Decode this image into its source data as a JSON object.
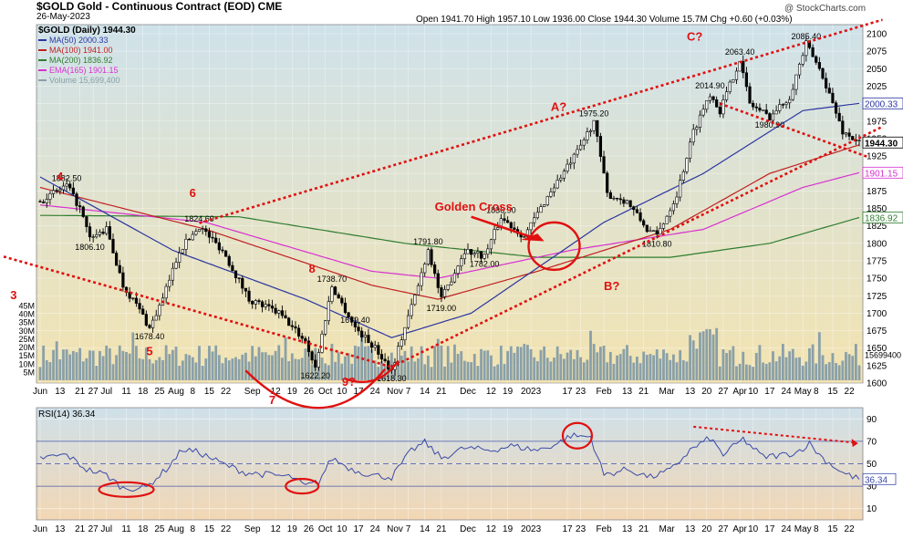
{
  "header": {
    "symbol_line": "$GOLD Gold - Continuous Contract (EOD) CME",
    "date": "26-May-2023",
    "ohlc_line": "Open 1941.70  High 1957.10  Low 1936.00  Close 1944.30  Volume 15.7M  Chg +0.60 (+0.03%)",
    "watermark": "@ StockCharts.com"
  },
  "colors": {
    "background": "#ffffff",
    "price_panel_top": "#cfe2ea",
    "price_panel_bottom": "#f3e3b0",
    "rsi_panel_top": "#cfe0ea",
    "rsi_panel_bottom": "#f2d7b4",
    "candle": "#000000",
    "volume": "#8aa0a8",
    "ma50": "#2a36a0",
    "ma100": "#c02020",
    "ma200": "#2f7d2f",
    "ema165": "#d830d0",
    "annotation": "#e01010",
    "rsi": "#3a4aa8"
  },
  "chart_data": [
    {
      "type": "candlestick",
      "panel": "price",
      "legend": [
        {
          "name": "$GOLD (Daily) 1944.30",
          "color": "#000000"
        },
        {
          "name": "MA(50) 2000.33",
          "color": "#2a36a0"
        },
        {
          "name": "MA(100) 1941.00",
          "color": "#c02020"
        },
        {
          "name": "MA(200) 1836.92",
          "color": "#2f7d2f"
        },
        {
          "name": "EMA(165) 1901.15",
          "color": "#d830d0"
        },
        {
          "name": "Volume 15,699,400",
          "color": "#8aa0a8"
        }
      ],
      "x_ticks": [
        {
          "label": "Jun",
          "i": 0
        },
        {
          "label": "13",
          "i": 6
        },
        {
          "label": "21",
          "i": 12
        },
        {
          "label": "27",
          "i": 16
        },
        {
          "label": "Jul",
          "i": 20
        },
        {
          "label": "11",
          "i": 26
        },
        {
          "label": "18",
          "i": 31
        },
        {
          "label": "25",
          "i": 36
        },
        {
          "label": "Aug",
          "i": 41
        },
        {
          "label": "8",
          "i": 46
        },
        {
          "label": "15",
          "i": 51
        },
        {
          "label": "22",
          "i": 56
        },
        {
          "label": "Sep",
          "i": 64
        },
        {
          "label": "12",
          "i": 71
        },
        {
          "label": "19",
          "i": 76
        },
        {
          "label": "26",
          "i": 81
        },
        {
          "label": "Oct",
          "i": 86
        },
        {
          "label": "10",
          "i": 91
        },
        {
          "label": "17",
          "i": 96
        },
        {
          "label": "24",
          "i": 101
        },
        {
          "label": "Nov",
          "i": 107
        },
        {
          "label": "7",
          "i": 111
        },
        {
          "label": "14",
          "i": 116
        },
        {
          "label": "21",
          "i": 121
        },
        {
          "label": "Dec",
          "i": 129
        },
        {
          "label": "12",
          "i": 136
        },
        {
          "label": "19",
          "i": 141
        },
        {
          "label": "2023",
          "i": 148
        },
        {
          "label": "17",
          "i": 159
        },
        {
          "label": "23",
          "i": 163
        },
        {
          "label": "Feb",
          "i": 170
        },
        {
          "label": "13",
          "i": 177
        },
        {
          "label": "21",
          "i": 182
        },
        {
          "label": "Mar",
          "i": 189
        },
        {
          "label": "13",
          "i": 196
        },
        {
          "label": "20",
          "i": 201
        },
        {
          "label": "27",
          "i": 206
        },
        {
          "label": "Apr",
          "i": 211
        },
        {
          "label": "10",
          "i": 215
        },
        {
          "label": "17",
          "i": 220
        },
        {
          "label": "24",
          "i": 225
        },
        {
          "label": "May",
          "i": 230
        },
        {
          "label": "8",
          "i": 234
        },
        {
          "label": "15",
          "i": 239
        },
        {
          "label": "22",
          "i": 244
        }
      ],
      "y_axis": {
        "min": 1600,
        "max": 2100,
        "ticks": [
          1600,
          1625,
          1650,
          1675,
          1700,
          1725,
          1750,
          1775,
          1800,
          1825,
          1850,
          1875,
          1900,
          1925,
          1950,
          1975,
          2000,
          2025,
          2050,
          2075,
          2100
        ]
      },
      "y_axis_tick_labels": [
        "1600",
        "1625",
        "1650",
        "1675",
        "1700",
        "1725",
        "1750",
        "1775",
        "1800",
        "1825",
        "1850",
        "1875",
        "1900",
        "1925",
        "1950",
        "1975",
        "2000",
        "2025",
        "2050",
        "2075",
        "2100"
      ],
      "last_value_flags": [
        {
          "label": "2000.33",
          "value": 2000.33,
          "color": "#2a36a0"
        },
        {
          "label": "1944.30",
          "value": 1944.3,
          "color": "#000000"
        },
        {
          "label": "1901.15",
          "value": 1901.15,
          "color": "#d830d0"
        },
        {
          "label": "1836.92",
          "value": 1836.92,
          "color": "#2f7d2f"
        }
      ],
      "price_anchors": [
        {
          "i": 0,
          "v": 1860
        },
        {
          "i": 8,
          "v": 1882.5
        },
        {
          "i": 12,
          "v": 1850
        },
        {
          "i": 15,
          "v": 1806.1
        },
        {
          "i": 20,
          "v": 1820
        },
        {
          "i": 25,
          "v": 1740
        },
        {
          "i": 30,
          "v": 1705
        },
        {
          "i": 33,
          "v": 1678.4
        },
        {
          "i": 37,
          "v": 1720
        },
        {
          "i": 42,
          "v": 1790
        },
        {
          "i": 48,
          "v": 1824.6
        },
        {
          "i": 55,
          "v": 1790
        },
        {
          "i": 63,
          "v": 1720
        },
        {
          "i": 72,
          "v": 1700
        },
        {
          "i": 80,
          "v": 1660
        },
        {
          "i": 83,
          "v": 1622.2
        },
        {
          "i": 88,
          "v": 1738.7
        },
        {
          "i": 95,
          "v": 1679.4
        },
        {
          "i": 101,
          "v": 1650
        },
        {
          "i": 106,
          "v": 1618.3
        },
        {
          "i": 110,
          "v": 1680
        },
        {
          "i": 114,
          "v": 1740
        },
        {
          "i": 117,
          "v": 1791.8
        },
        {
          "i": 121,
          "v": 1719
        },
        {
          "i": 128,
          "v": 1790
        },
        {
          "i": 134,
          "v": 1782
        },
        {
          "i": 139,
          "v": 1836.9
        },
        {
          "i": 146,
          "v": 1810
        },
        {
          "i": 154,
          "v": 1875
        },
        {
          "i": 162,
          "v": 1930
        },
        {
          "i": 167,
          "v": 1975.2
        },
        {
          "i": 171,
          "v": 1870
        },
        {
          "i": 177,
          "v": 1860
        },
        {
          "i": 183,
          "v": 1820
        },
        {
          "i": 186,
          "v": 1810.8
        },
        {
          "i": 192,
          "v": 1870
        },
        {
          "i": 197,
          "v": 1960
        },
        {
          "i": 202,
          "v": 2014.9
        },
        {
          "i": 205,
          "v": 1990
        },
        {
          "i": 211,
          "v": 2063.4
        },
        {
          "i": 214,
          "v": 2000
        },
        {
          "i": 220,
          "v": 1980.9
        },
        {
          "i": 226,
          "v": 2010
        },
        {
          "i": 231,
          "v": 2085.4
        },
        {
          "i": 236,
          "v": 2040
        },
        {
          "i": 242,
          "v": 1960
        },
        {
          "i": 247,
          "v": 1944.3
        }
      ],
      "ma50_anchors": [
        {
          "i": 0,
          "v": 1895
        },
        {
          "i": 40,
          "v": 1790
        },
        {
          "i": 80,
          "v": 1720
        },
        {
          "i": 106,
          "v": 1665
        },
        {
          "i": 130,
          "v": 1700
        },
        {
          "i": 170,
          "v": 1830
        },
        {
          "i": 200,
          "v": 1900
        },
        {
          "i": 230,
          "v": 1990
        },
        {
          "i": 247,
          "v": 2000.33
        }
      ],
      "ma100_anchors": [
        {
          "i": 0,
          "v": 1880
        },
        {
          "i": 50,
          "v": 1820
        },
        {
          "i": 100,
          "v": 1740
        },
        {
          "i": 120,
          "v": 1720
        },
        {
          "i": 150,
          "v": 1760
        },
        {
          "i": 190,
          "v": 1820
        },
        {
          "i": 220,
          "v": 1900
        },
        {
          "i": 247,
          "v": 1941
        }
      ],
      "ma200_anchors": [
        {
          "i": 0,
          "v": 1840
        },
        {
          "i": 60,
          "v": 1838
        },
        {
          "i": 110,
          "v": 1800
        },
        {
          "i": 150,
          "v": 1780
        },
        {
          "i": 190,
          "v": 1780
        },
        {
          "i": 220,
          "v": 1800
        },
        {
          "i": 247,
          "v": 1836.92
        }
      ],
      "ema165_anchors": [
        {
          "i": 0,
          "v": 1855
        },
        {
          "i": 50,
          "v": 1830
        },
        {
          "i": 100,
          "v": 1760
        },
        {
          "i": 120,
          "v": 1750
        },
        {
          "i": 160,
          "v": 1790
        },
        {
          "i": 200,
          "v": 1820
        },
        {
          "i": 230,
          "v": 1880
        },
        {
          "i": 247,
          "v": 1901.15
        }
      ],
      "volume_axis": {
        "max": 45,
        "tick_labels": [
          "5M",
          "10M",
          "15M",
          "20M",
          "25M",
          "30M",
          "35M",
          "40M",
          "45M"
        ],
        "last_label": "15699400"
      },
      "price_labels": [
        {
          "text": "1882.50",
          "i": 8,
          "v": 1882.5,
          "pos": "above"
        },
        {
          "text": "1806.10",
          "i": 15,
          "v": 1806.1,
          "pos": "below"
        },
        {
          "text": "1678.40",
          "i": 33,
          "v": 1678.4,
          "pos": "below"
        },
        {
          "text": "1824.60",
          "i": 48,
          "v": 1824.6,
          "pos": "above"
        },
        {
          "text": "1738.70",
          "i": 88,
          "v": 1738.7,
          "pos": "above"
        },
        {
          "text": "1679.40",
          "i": 95,
          "v": 1679.4,
          "pos": "above"
        },
        {
          "text": "1622.20",
          "i": 83,
          "v": 1622.2,
          "pos": "below"
        },
        {
          "text": "1618.30",
          "i": 106,
          "v": 1618.3,
          "pos": "below"
        },
        {
          "text": "1791.80",
          "i": 117,
          "v": 1791.8,
          "pos": "above"
        },
        {
          "text": "1719.00",
          "i": 121,
          "v": 1719,
          "pos": "below"
        },
        {
          "text": "1836.90",
          "i": 139,
          "v": 1836.9,
          "pos": "above"
        },
        {
          "text": "1782.00",
          "i": 134,
          "v": 1782,
          "pos": "below"
        },
        {
          "text": "1975.20",
          "i": 167,
          "v": 1975.2,
          "pos": "above"
        },
        {
          "text": "1810.80",
          "i": 186,
          "v": 1810.8,
          "pos": "below"
        },
        {
          "text": "2014.90",
          "i": 202,
          "v": 2014.9,
          "pos": "above"
        },
        {
          "text": "2063.40",
          "i": 211,
          "v": 2063.4,
          "pos": "above"
        },
        {
          "text": "1980.90",
          "i": 220,
          "v": 1980.9,
          "pos": "below"
        },
        {
          "text": "2085.40",
          "i": 231,
          "v": 2085.4,
          "pos": "above"
        }
      ],
      "annotations": [
        {
          "text": "4",
          "i": 5,
          "v": 1890
        },
        {
          "text": "3",
          "i": -9,
          "v": 1720
        },
        {
          "text": "5",
          "i": 32,
          "v": 1640
        },
        {
          "text": "6",
          "i": 45,
          "v": 1866
        },
        {
          "text": "7",
          "i": 69,
          "v": 1570
        },
        {
          "text": "8",
          "i": 81,
          "v": 1758
        },
        {
          "text": "9?",
          "i": 91,
          "v": 1596
        },
        {
          "text": "Golden Cross",
          "i": 119,
          "v": 1847
        },
        {
          "text": "A?",
          "i": 154,
          "v": 1990
        },
        {
          "text": "B?",
          "i": 170,
          "v": 1733
        },
        {
          "text": "C?",
          "i": 195,
          "v": 2090
        }
      ],
      "trend_lines": [
        {
          "i1": -11,
          "v1": 1781,
          "i2": 106,
          "v2": 1623,
          "style": "dotted"
        },
        {
          "i1": 48,
          "v1": 1829,
          "i2": 254,
          "v2": 2120,
          "style": "dotted"
        },
        {
          "i1": 106,
          "v1": 1623,
          "i2": 254,
          "v2": 1967,
          "style": "dotted"
        },
        {
          "i1": 205,
          "v1": 2000,
          "i2": 250,
          "v2": 1923,
          "style": "dotted"
        }
      ]
    },
    {
      "type": "line",
      "panel": "rsi",
      "name": "RSI(14) 36.34",
      "y_axis": {
        "min": 0,
        "max": 100,
        "ticks": [
          10,
          30,
          50,
          70,
          90
        ]
      },
      "y_axis_tick_labels": [
        "10",
        "30",
        "50",
        "70",
        "90"
      ],
      "last_value_label": "36.34",
      "rsi_anchors": [
        {
          "i": 0,
          "v": 55
        },
        {
          "i": 8,
          "v": 58
        },
        {
          "i": 14,
          "v": 45
        },
        {
          "i": 20,
          "v": 40
        },
        {
          "i": 25,
          "v": 28
        },
        {
          "i": 32,
          "v": 29
        },
        {
          "i": 38,
          "v": 45
        },
        {
          "i": 43,
          "v": 63
        },
        {
          "i": 48,
          "v": 60
        },
        {
          "i": 55,
          "v": 50
        },
        {
          "i": 62,
          "v": 42
        },
        {
          "i": 70,
          "v": 40
        },
        {
          "i": 76,
          "v": 38
        },
        {
          "i": 80,
          "v": 30
        },
        {
          "i": 84,
          "v": 34
        },
        {
          "i": 88,
          "v": 55
        },
        {
          "i": 94,
          "v": 45
        },
        {
          "i": 100,
          "v": 40
        },
        {
          "i": 106,
          "v": 38
        },
        {
          "i": 112,
          "v": 62
        },
        {
          "i": 116,
          "v": 69
        },
        {
          "i": 121,
          "v": 55
        },
        {
          "i": 128,
          "v": 64
        },
        {
          "i": 136,
          "v": 62
        },
        {
          "i": 142,
          "v": 66
        },
        {
          "i": 150,
          "v": 62
        },
        {
          "i": 156,
          "v": 68
        },
        {
          "i": 160,
          "v": 75
        },
        {
          "i": 166,
          "v": 74
        },
        {
          "i": 170,
          "v": 40
        },
        {
          "i": 177,
          "v": 45
        },
        {
          "i": 184,
          "v": 38
        },
        {
          "i": 190,
          "v": 44
        },
        {
          "i": 196,
          "v": 62
        },
        {
          "i": 202,
          "v": 73
        },
        {
          "i": 206,
          "v": 58
        },
        {
          "i": 212,
          "v": 72
        },
        {
          "i": 218,
          "v": 56
        },
        {
          "i": 224,
          "v": 58
        },
        {
          "i": 228,
          "v": 60
        },
        {
          "i": 232,
          "v": 68
        },
        {
          "i": 236,
          "v": 55
        },
        {
          "i": 242,
          "v": 42
        },
        {
          "i": 247,
          "v": 36.34
        }
      ],
      "x_ticks_same_as_price": true,
      "annotations": [
        {
          "type": "ellipse",
          "i": 26,
          "v": 27
        },
        {
          "type": "ellipse",
          "i": 79,
          "v": 30
        },
        {
          "type": "ellipse",
          "i": 162,
          "v": 75
        }
      ],
      "trend_lines": [
        {
          "i1": 197,
          "v1": 83,
          "i2": 245,
          "v2": 69,
          "style": "dotted"
        }
      ]
    }
  ]
}
